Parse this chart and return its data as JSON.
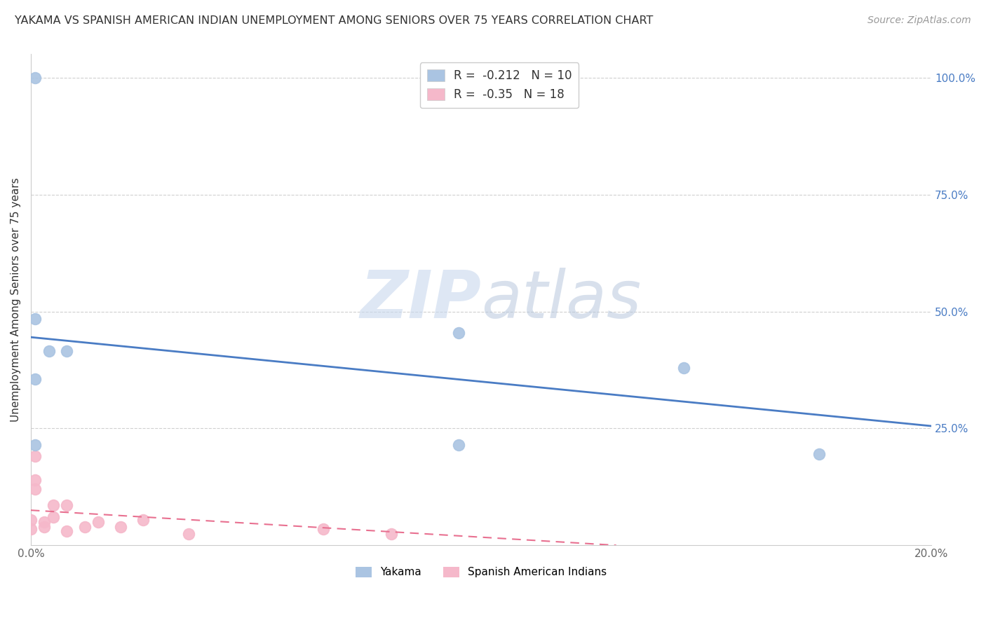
{
  "title": "YAKAMA VS SPANISH AMERICAN INDIAN UNEMPLOYMENT AMONG SENIORS OVER 75 YEARS CORRELATION CHART",
  "source": "Source: ZipAtlas.com",
  "ylabel": "Unemployment Among Seniors over 75 years",
  "xlim": [
    0.0,
    0.2
  ],
  "ylim": [
    0.0,
    1.05
  ],
  "xticks": [
    0.0,
    0.05,
    0.1,
    0.15,
    0.2
  ],
  "xtick_labels": [
    "0.0%",
    "",
    "",
    "",
    "20.0%"
  ],
  "yticks": [
    0.25,
    0.5,
    0.75,
    1.0
  ],
  "ytick_labels": [
    "25.0%",
    "50.0%",
    "75.0%",
    "100.0%"
  ],
  "yakama_x": [
    0.001,
    0.004,
    0.008,
    0.001,
    0.001,
    0.095,
    0.145,
    0.175,
    0.095,
    0.001
  ],
  "yakama_y": [
    0.485,
    0.415,
    0.415,
    1.0,
    0.355,
    0.455,
    0.38,
    0.195,
    0.215,
    0.215
  ],
  "spanish_x": [
    0.0,
    0.0,
    0.001,
    0.001,
    0.001,
    0.003,
    0.003,
    0.005,
    0.005,
    0.008,
    0.008,
    0.012,
    0.015,
    0.02,
    0.025,
    0.035,
    0.065,
    0.08
  ],
  "spanish_y": [
    0.055,
    0.035,
    0.19,
    0.14,
    0.12,
    0.05,
    0.04,
    0.085,
    0.06,
    0.085,
    0.03,
    0.04,
    0.05,
    0.04,
    0.055,
    0.025,
    0.035,
    0.025
  ],
  "yakama_color": "#aac4e2",
  "spanish_color": "#f5b8ca",
  "yakama_line_color": "#4a7cc4",
  "spanish_line_color": "#e87090",
  "R_yakama": -0.212,
  "N_yakama": 10,
  "R_spanish": -0.35,
  "N_spanish": 18,
  "background_color": "#ffffff",
  "grid_color": "#d0d0d0",
  "watermark_zip": "ZIP",
  "watermark_atlas": "atlas",
  "marker_size": 130
}
